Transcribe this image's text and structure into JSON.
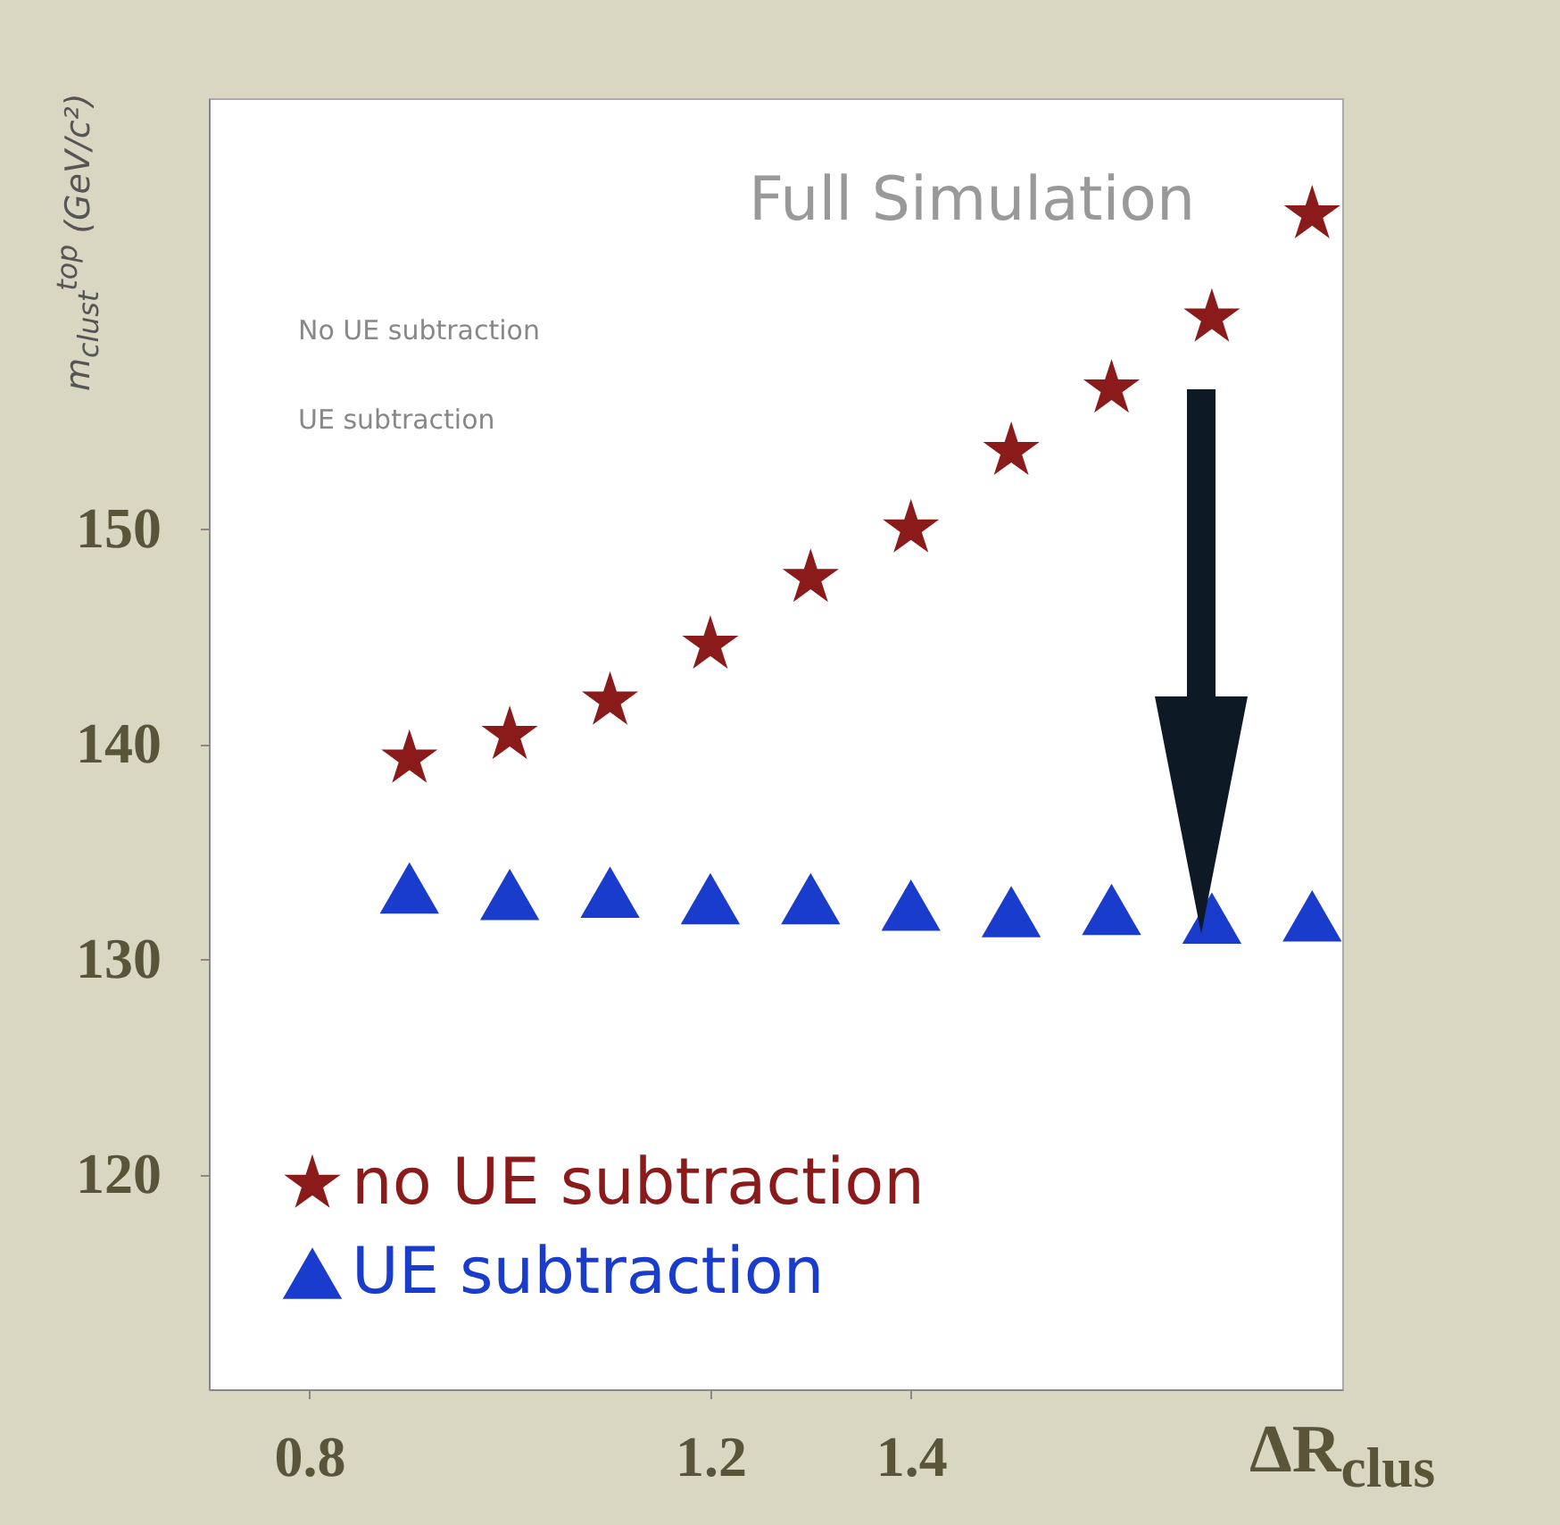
{
  "chart_data": {
    "type": "scatter",
    "title": "Full Simulation",
    "xlabel": "ΔR$_{clus}$",
    "ylabel": "m$_{clust}$$^{top}$ (GeV/c²)",
    "x": [
      0.9,
      1.0,
      1.1,
      1.2,
      1.3,
      1.4,
      1.5,
      1.6,
      1.7,
      1.8
    ],
    "series": [
      {
        "name": "no UE subtraction",
        "color": "#8b1a1a",
        "marker": "star",
        "values": [
          139.3,
          140.4,
          142.0,
          144.6,
          147.7,
          150.0,
          153.6,
          156.5,
          159.8,
          164.6
        ]
      },
      {
        "name": "UE subtraction",
        "color": "#1a3ccc",
        "marker": "triangle",
        "values": [
          133.3,
          133.0,
          133.1,
          132.8,
          132.8,
          132.5,
          132.2,
          132.3,
          131.9,
          132.0
        ]
      }
    ],
    "xlim": [
      0.7,
      1.83
    ],
    "xticks": [
      0.8,
      1.2,
      1.4
    ],
    "ylim": [
      110,
      170
    ],
    "yticks": [
      120,
      130,
      140,
      150
    ],
    "legend": "bottom left",
    "grid": false,
    "annotations": [
      "No UE subtraction",
      "UE subtraction"
    ]
  }
}
